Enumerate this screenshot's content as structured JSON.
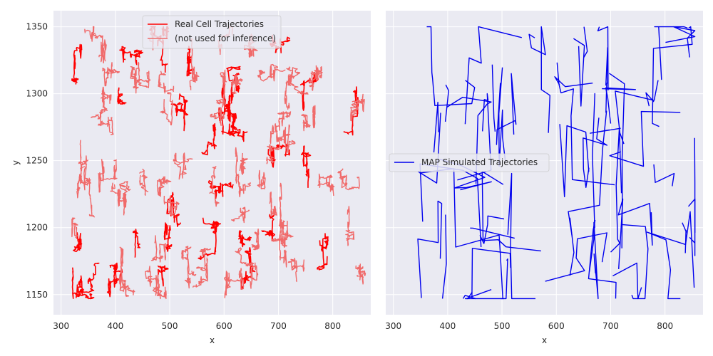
{
  "chart_data": [
    {
      "type": "line",
      "xlabel": "x",
      "ylabel": "y",
      "xlim": [
        286,
        870
      ],
      "ylim": [
        1135,
        1362
      ],
      "xticks": [
        "300",
        "400",
        "500",
        "600",
        "700",
        "800"
      ],
      "yticks": [
        "1150",
        "1200",
        "1250",
        "1300",
        "1350"
      ],
      "grid": true,
      "legend_position": "upper center",
      "legend": [
        "Real Cell Trajectories",
        "(not used for inference)"
      ],
      "colors": {
        "primary": "#ff0000",
        "secondary": "#f06a6a"
      },
      "series": [
        {
          "name": "Real Cell Trajectories",
          "color": "#ff0000",
          "x_range": [
            320,
            860
          ],
          "y_range": [
            1147,
            1350
          ],
          "count": 32
        },
        {
          "name": "(not used for inference)",
          "color": "#f06a6a",
          "x_range": [
            320,
            860
          ],
          "y_range": [
            1147,
            1350
          ],
          "count": 62
        }
      ]
    },
    {
      "type": "line",
      "xlabel": "x",
      "ylabel": "",
      "xlim": [
        286,
        870
      ],
      "ylim": [
        1135,
        1362
      ],
      "xticks": [
        "300",
        "400",
        "500",
        "600",
        "700",
        "800"
      ],
      "yticks": [],
      "grid": true,
      "legend_position": "center left",
      "legend": [
        "MAP Simulated Trajectories"
      ],
      "colors": {
        "primary": "#0000ee"
      },
      "series": [
        {
          "name": "MAP Simulated Trajectories",
          "color": "#0000ee",
          "x_range": [
            345,
            855
          ],
          "y_range": [
            1147,
            1350
          ],
          "count": 55
        }
      ]
    }
  ]
}
